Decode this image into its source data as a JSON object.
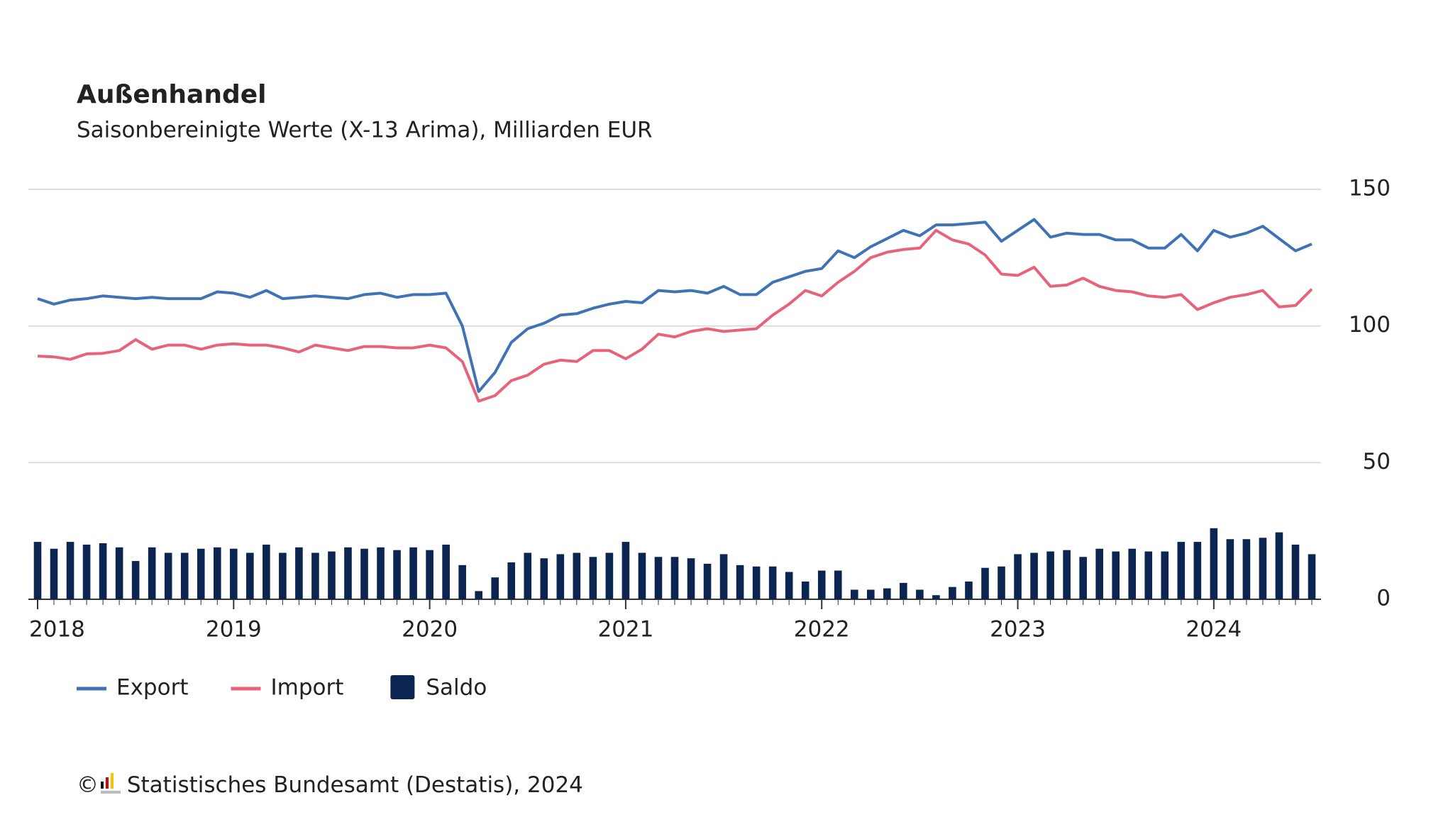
{
  "chart_data": {
    "type": "line-bar",
    "title": "Außenhandel",
    "subtitle": "Saisonbereinigte Werte (X-13 Arima), Milliarden EUR",
    "footer": "© Statistisches Bundesamt (Destatis), 2024",
    "categories": [
      "2018",
      null,
      null,
      null,
      null,
      null,
      null,
      null,
      null,
      null,
      null,
      null,
      "2019",
      null,
      null,
      null,
      null,
      null,
      null,
      null,
      null,
      null,
      null,
      null,
      "2020",
      null,
      null,
      null,
      null,
      null,
      null,
      null,
      null,
      null,
      null,
      null,
      "2021",
      null,
      null,
      null,
      null,
      null,
      null,
      null,
      null,
      null,
      null,
      null,
      "2022",
      null,
      null,
      null,
      null,
      null,
      null,
      null,
      null,
      null,
      null,
      null,
      "2023",
      null,
      null,
      null,
      null,
      null,
      null,
      null,
      null,
      null,
      null,
      null,
      "2024",
      null,
      null,
      null,
      null,
      null,
      null
    ],
    "series": [
      {
        "name": "Export",
        "type": "line",
        "color": "#3f73b5",
        "values": [
          110,
          108,
          109.5,
          110,
          111,
          110.5,
          110,
          110.5,
          110,
          110,
          110,
          112.5,
          112,
          110.5,
          113,
          110,
          110.5,
          111,
          110.5,
          110,
          111.5,
          112,
          110.5,
          111.5,
          111.5,
          112,
          100,
          76,
          83,
          94,
          99,
          101,
          104,
          104.5,
          106.5,
          108,
          109,
          108.5,
          113,
          112.5,
          113,
          112,
          114.5,
          111.5,
          111.5,
          116,
          118,
          120,
          121,
          127.5,
          125,
          129,
          132,
          135,
          133,
          137,
          137,
          137.5,
          138,
          131,
          135,
          139,
          132.5,
          134,
          133.5,
          133.5,
          131.5,
          131.5,
          128.5,
          128.5,
          133.5,
          127.5,
          135,
          132.5,
          134,
          136.5,
          132,
          127.5,
          130
        ]
      },
      {
        "name": "Import",
        "type": "line",
        "color": "#e8637a",
        "values": [
          89,
          88.7,
          87.8,
          89.8,
          90,
          91,
          95,
          91.5,
          93,
          93,
          91.5,
          93,
          93.5,
          93,
          93,
          92,
          90.5,
          93,
          92,
          91,
          92.5,
          92.5,
          92,
          92,
          93,
          92,
          87,
          72.5,
          74.5,
          80,
          82,
          86,
          87.5,
          87,
          91,
          91,
          88,
          91.5,
          97,
          96,
          98,
          99,
          98,
          98.5,
          99,
          104,
          108,
          113,
          111,
          116,
          120,
          125,
          127,
          128,
          128.5,
          135,
          131.5,
          130,
          126,
          119,
          118.5,
          121.5,
          114.5,
          115,
          117.5,
          114.5,
          113,
          112.5,
          111,
          110.5,
          111.5,
          106,
          108.5,
          110.5,
          111.5,
          113,
          107,
          107.5,
          113.5
        ]
      },
      {
        "name": "Saldo",
        "type": "bar",
        "color": "#0b2550",
        "values": [
          21,
          18.5,
          21,
          20,
          20.5,
          19,
          14,
          19,
          17,
          17,
          18.5,
          19,
          18.5,
          17,
          20,
          17,
          19,
          17,
          17.5,
          19,
          18.5,
          19,
          18,
          19,
          18,
          20,
          12.5,
          3,
          8,
          13.5,
          17,
          15,
          16.5,
          17,
          15.5,
          17,
          21,
          17,
          15.5,
          15.5,
          15,
          13,
          16.5,
          12.5,
          12,
          12,
          10,
          6.5,
          10.5,
          10.5,
          3.5,
          3.5,
          4,
          6,
          3.5,
          1.5,
          4.5,
          6.5,
          11.5,
          12,
          16.5,
          17,
          17.5,
          18,
          15.5,
          18.5,
          17.5,
          18.5,
          17.5,
          17.5,
          21,
          21,
          26,
          22,
          22,
          22.5,
          24.5,
          20,
          16.5
        ]
      }
    ],
    "ylim": [
      0,
      150
    ],
    "yticks": [
      0,
      50,
      100,
      150
    ],
    "grid": true
  }
}
